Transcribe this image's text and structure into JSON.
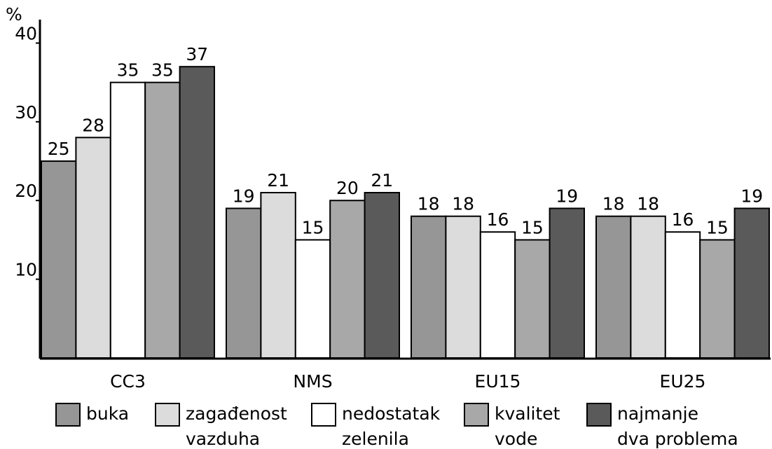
{
  "chart_data": {
    "type": "bar",
    "y_label": "%",
    "categories": [
      "CC3",
      "NMS",
      "EU15",
      "EU25"
    ],
    "series": [
      {
        "name": "buka",
        "color": "#969696",
        "values": [
          25,
          19,
          18,
          18
        ]
      },
      {
        "name": "zagađenost\nvazduha",
        "color": "#dcdcdc",
        "values": [
          28,
          21,
          18,
          18
        ]
      },
      {
        "name": "nedostatak\nzelenila",
        "color": "#ffffff",
        "values": [
          35,
          15,
          16,
          16
        ]
      },
      {
        "name": "kvalitet\nvode",
        "color": "#a8a8a8",
        "values": [
          35,
          20,
          15,
          15
        ]
      },
      {
        "name": "najmanje\ndva problema",
        "color": "#5a5a5a",
        "values": [
          37,
          21,
          19,
          19
        ]
      }
    ],
    "ylim": [
      0,
      42
    ],
    "yticks": [
      10,
      20,
      30,
      40
    ],
    "grid": false
  }
}
